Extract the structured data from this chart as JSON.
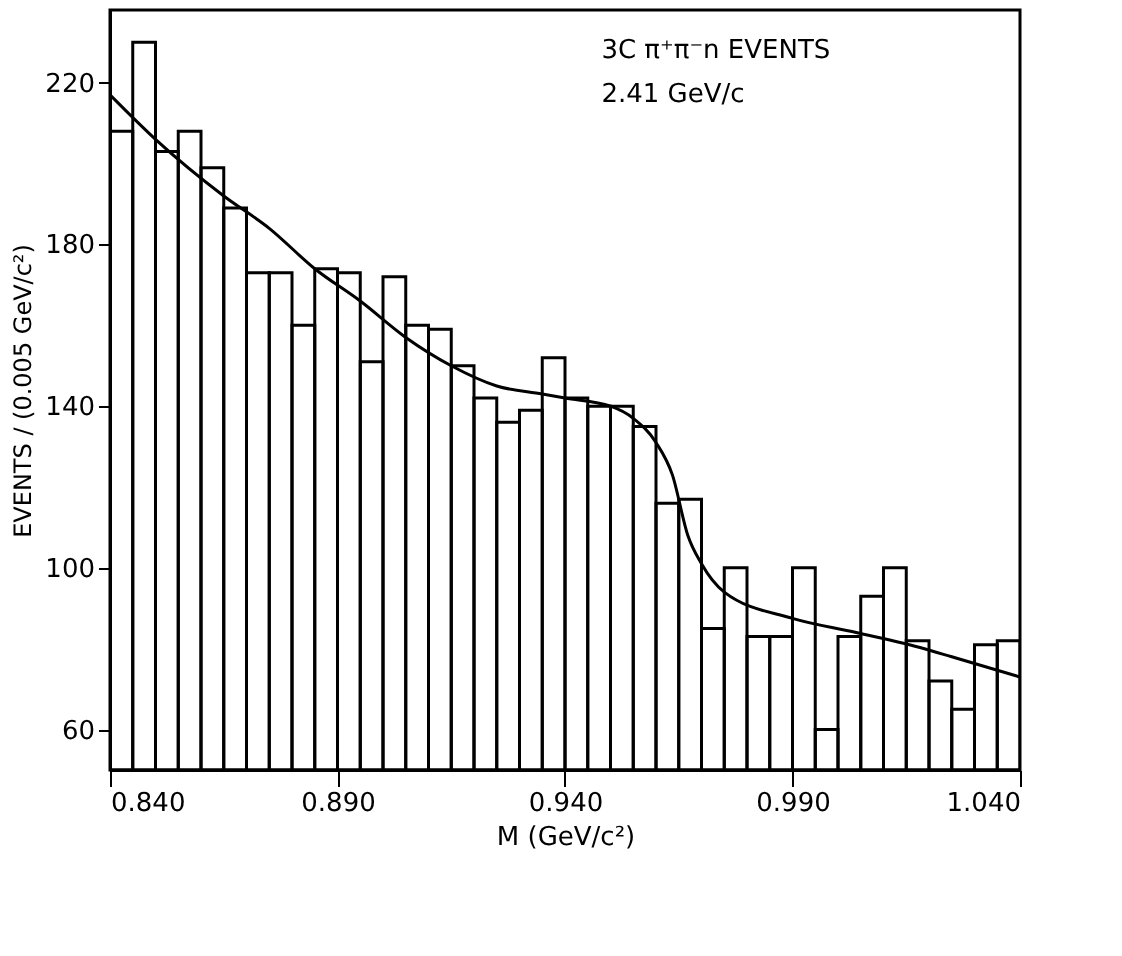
{
  "chart_data": {
    "type": "histogram",
    "xlabel": "M  (GeV/c²)",
    "ylabel": "EVENTS / (0.005  GeV/c²)",
    "annotations": [
      "3C π⁺π⁻n EVENTS",
      "2.41 GeV/c"
    ],
    "bins": [
      0.84,
      0.845,
      0.85,
      0.855,
      0.86,
      0.865,
      0.87,
      0.875,
      0.88,
      0.885,
      0.89,
      0.895,
      0.9,
      0.905,
      0.91,
      0.915,
      0.92,
      0.925,
      0.93,
      0.935,
      0.94,
      0.945,
      0.95,
      0.955,
      0.96,
      0.965,
      0.97,
      0.975,
      0.98,
      0.985,
      0.99,
      0.995,
      1.0,
      1.005,
      1.01,
      1.015,
      1.02,
      1.025,
      1.03,
      1.035,
      1.04
    ],
    "values": [
      208,
      230,
      203,
      208,
      199,
      189,
      173,
      173,
      160,
      174,
      173,
      151,
      172,
      160,
      159,
      150,
      142,
      136,
      139,
      152,
      142,
      140,
      140,
      135,
      116,
      117,
      85,
      100,
      83,
      83,
      100,
      60,
      83,
      93,
      100,
      82,
      72,
      65,
      81,
      82
    ],
    "color": "#000000",
    "series": [
      {
        "type": "line",
        "color": "#000000",
        "x": [
          0.84,
          0.85,
          0.865,
          0.875,
          0.885,
          0.895,
          0.905,
          0.915,
          0.925,
          0.935,
          0.94,
          0.95,
          0.955,
          0.96,
          0.9636,
          0.967,
          0.97,
          0.975,
          0.99,
          1.004,
          1.019,
          1.025,
          1.04
        ],
        "values": [
          217,
          206,
          192,
          184,
          174,
          166,
          157,
          150,
          145,
          143,
          142,
          140,
          137,
          131,
          123,
          108,
          101,
          94,
          87.5,
          84,
          80,
          78,
          73
        ]
      }
    ],
    "xlim": [
      0.84,
      1.04
    ],
    "xticks": [
      {
        "value": 0.84,
        "label": "0.840"
      },
      {
        "value": 0.89,
        "label": "0.890"
      },
      {
        "value": 0.94,
        "label": "0.940"
      },
      {
        "value": 0.99,
        "label": "0.990"
      },
      {
        "value": 1.04,
        "label": "1.040"
      }
    ],
    "ylim": [
      50,
      238
    ],
    "yticks": [
      60,
      100,
      140,
      180,
      220
    ]
  }
}
